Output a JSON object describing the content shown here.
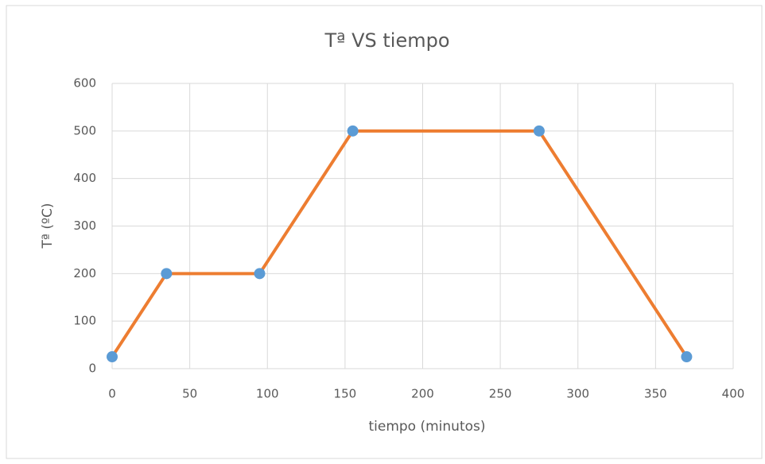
{
  "chart_data": {
    "type": "line",
    "title": "Tª VS tiempo",
    "x_label": "tiempo (minutos)",
    "y_label": "Tª (ºC)",
    "x": [
      0,
      35,
      95,
      155,
      275,
      370
    ],
    "series": [
      {
        "color": "#ed7d31",
        "marker_color": "#5b9bd5",
        "values": [
          25,
          200,
          200,
          500,
          500,
          25
        ]
      }
    ],
    "xlim": [
      0,
      400
    ],
    "xticks": [
      0,
      50,
      100,
      150,
      200,
      250,
      300,
      350,
      400
    ],
    "ylim": [
      0,
      600
    ],
    "yticks": [
      0,
      100,
      200,
      300,
      400,
      500,
      600
    ],
    "grid": true
  }
}
